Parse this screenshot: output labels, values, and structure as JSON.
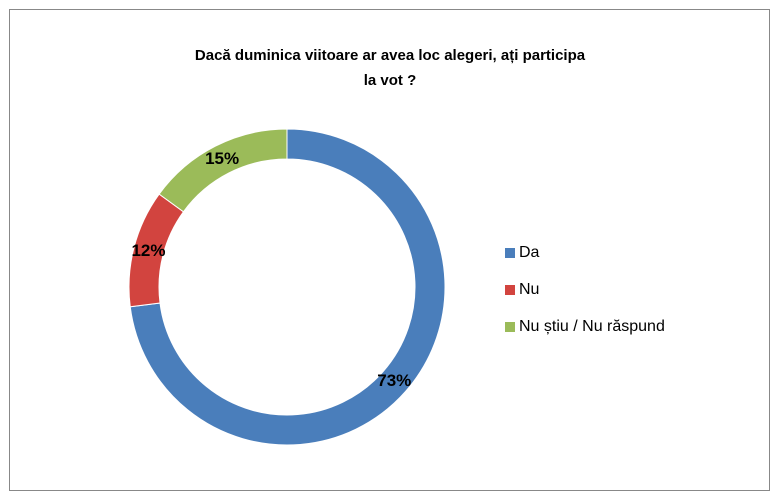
{
  "chart_data": {
    "type": "donut",
    "title": "Dacă duminica viitoare ar avea loc alegeri, ați participa la vot ?",
    "categories": [
      "Da",
      "Nu",
      "Nu știu / Nu răspund"
    ],
    "values": [
      73,
      12,
      15
    ],
    "value_labels": [
      "73%",
      "12%",
      "15%"
    ],
    "colors": [
      "#4a7ebb",
      "#d2443f",
      "#9bbb59"
    ],
    "legend": "right"
  }
}
